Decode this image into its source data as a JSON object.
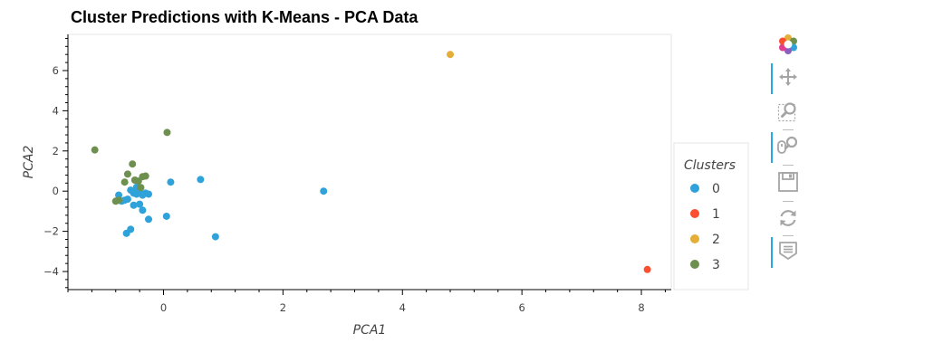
{
  "chart_data": {
    "type": "scatter",
    "title": "Cluster Predictions with K-Means - PCA Data",
    "xlabel": "PCA1",
    "ylabel": "PCA2",
    "xlim": [
      -1.6,
      8.5
    ],
    "ylim": [
      -4.9,
      7.8
    ],
    "xticks": [
      0,
      2,
      4,
      6,
      8
    ],
    "yticks": [
      -4,
      -2,
      0,
      2,
      4,
      6
    ],
    "grid": false,
    "legend": {
      "title": "Clusters",
      "position": "right"
    },
    "series": [
      {
        "name": "0",
        "color": "#30a2da",
        "points": [
          [
            -0.5,
            -0.1
          ],
          [
            -0.45,
            -0.15
          ],
          [
            -0.4,
            -0.05
          ],
          [
            -0.35,
            -0.2
          ],
          [
            -0.3,
            -0.1
          ],
          [
            -0.25,
            -0.15
          ],
          [
            -0.55,
            0.05
          ],
          [
            -0.6,
            -0.4
          ],
          [
            -0.7,
            -0.5
          ],
          [
            -0.75,
            -0.2
          ],
          [
            -0.5,
            -0.7
          ],
          [
            -0.4,
            -0.65
          ],
          [
            -0.35,
            -0.95
          ],
          [
            -0.25,
            -1.4
          ],
          [
            -0.55,
            -1.9
          ],
          [
            -0.62,
            -2.1
          ],
          [
            0.05,
            -1.25
          ],
          [
            0.12,
            0.45
          ],
          [
            0.62,
            0.58
          ],
          [
            0.87,
            -2.27
          ],
          [
            2.68,
            0.0
          ],
          [
            -0.65,
            -0.45
          ],
          [
            -0.45,
            0.2
          ]
        ]
      },
      {
        "name": "1",
        "color": "#fc4f30",
        "points": [
          [
            8.1,
            -3.9
          ]
        ]
      },
      {
        "name": "2",
        "color": "#e5ae38",
        "points": [
          [
            4.8,
            6.8
          ]
        ]
      },
      {
        "name": "3",
        "color": "#6d904f",
        "points": [
          [
            -1.15,
            2.05
          ],
          [
            0.06,
            2.92
          ],
          [
            -0.52,
            1.35
          ],
          [
            -0.6,
            0.85
          ],
          [
            -0.3,
            0.75
          ],
          [
            -0.35,
            0.72
          ],
          [
            -0.42,
            0.5
          ],
          [
            -0.48,
            0.55
          ],
          [
            -0.65,
            0.45
          ],
          [
            -0.38,
            0.18
          ],
          [
            -0.8,
            -0.5
          ],
          [
            -0.75,
            -0.45
          ]
        ]
      }
    ]
  },
  "toolbar": {
    "tools": [
      {
        "icon": "bokeh-logo-icon",
        "active": false
      },
      {
        "icon": "pan-icon",
        "active": true
      },
      {
        "icon": "box-zoom-icon",
        "active": false
      },
      {
        "icon": "wheel-zoom-icon",
        "active": true
      },
      {
        "icon": "save-icon",
        "active": false
      },
      {
        "icon": "reset-icon",
        "active": false
      },
      {
        "icon": "hover-icon",
        "active": true
      }
    ]
  }
}
